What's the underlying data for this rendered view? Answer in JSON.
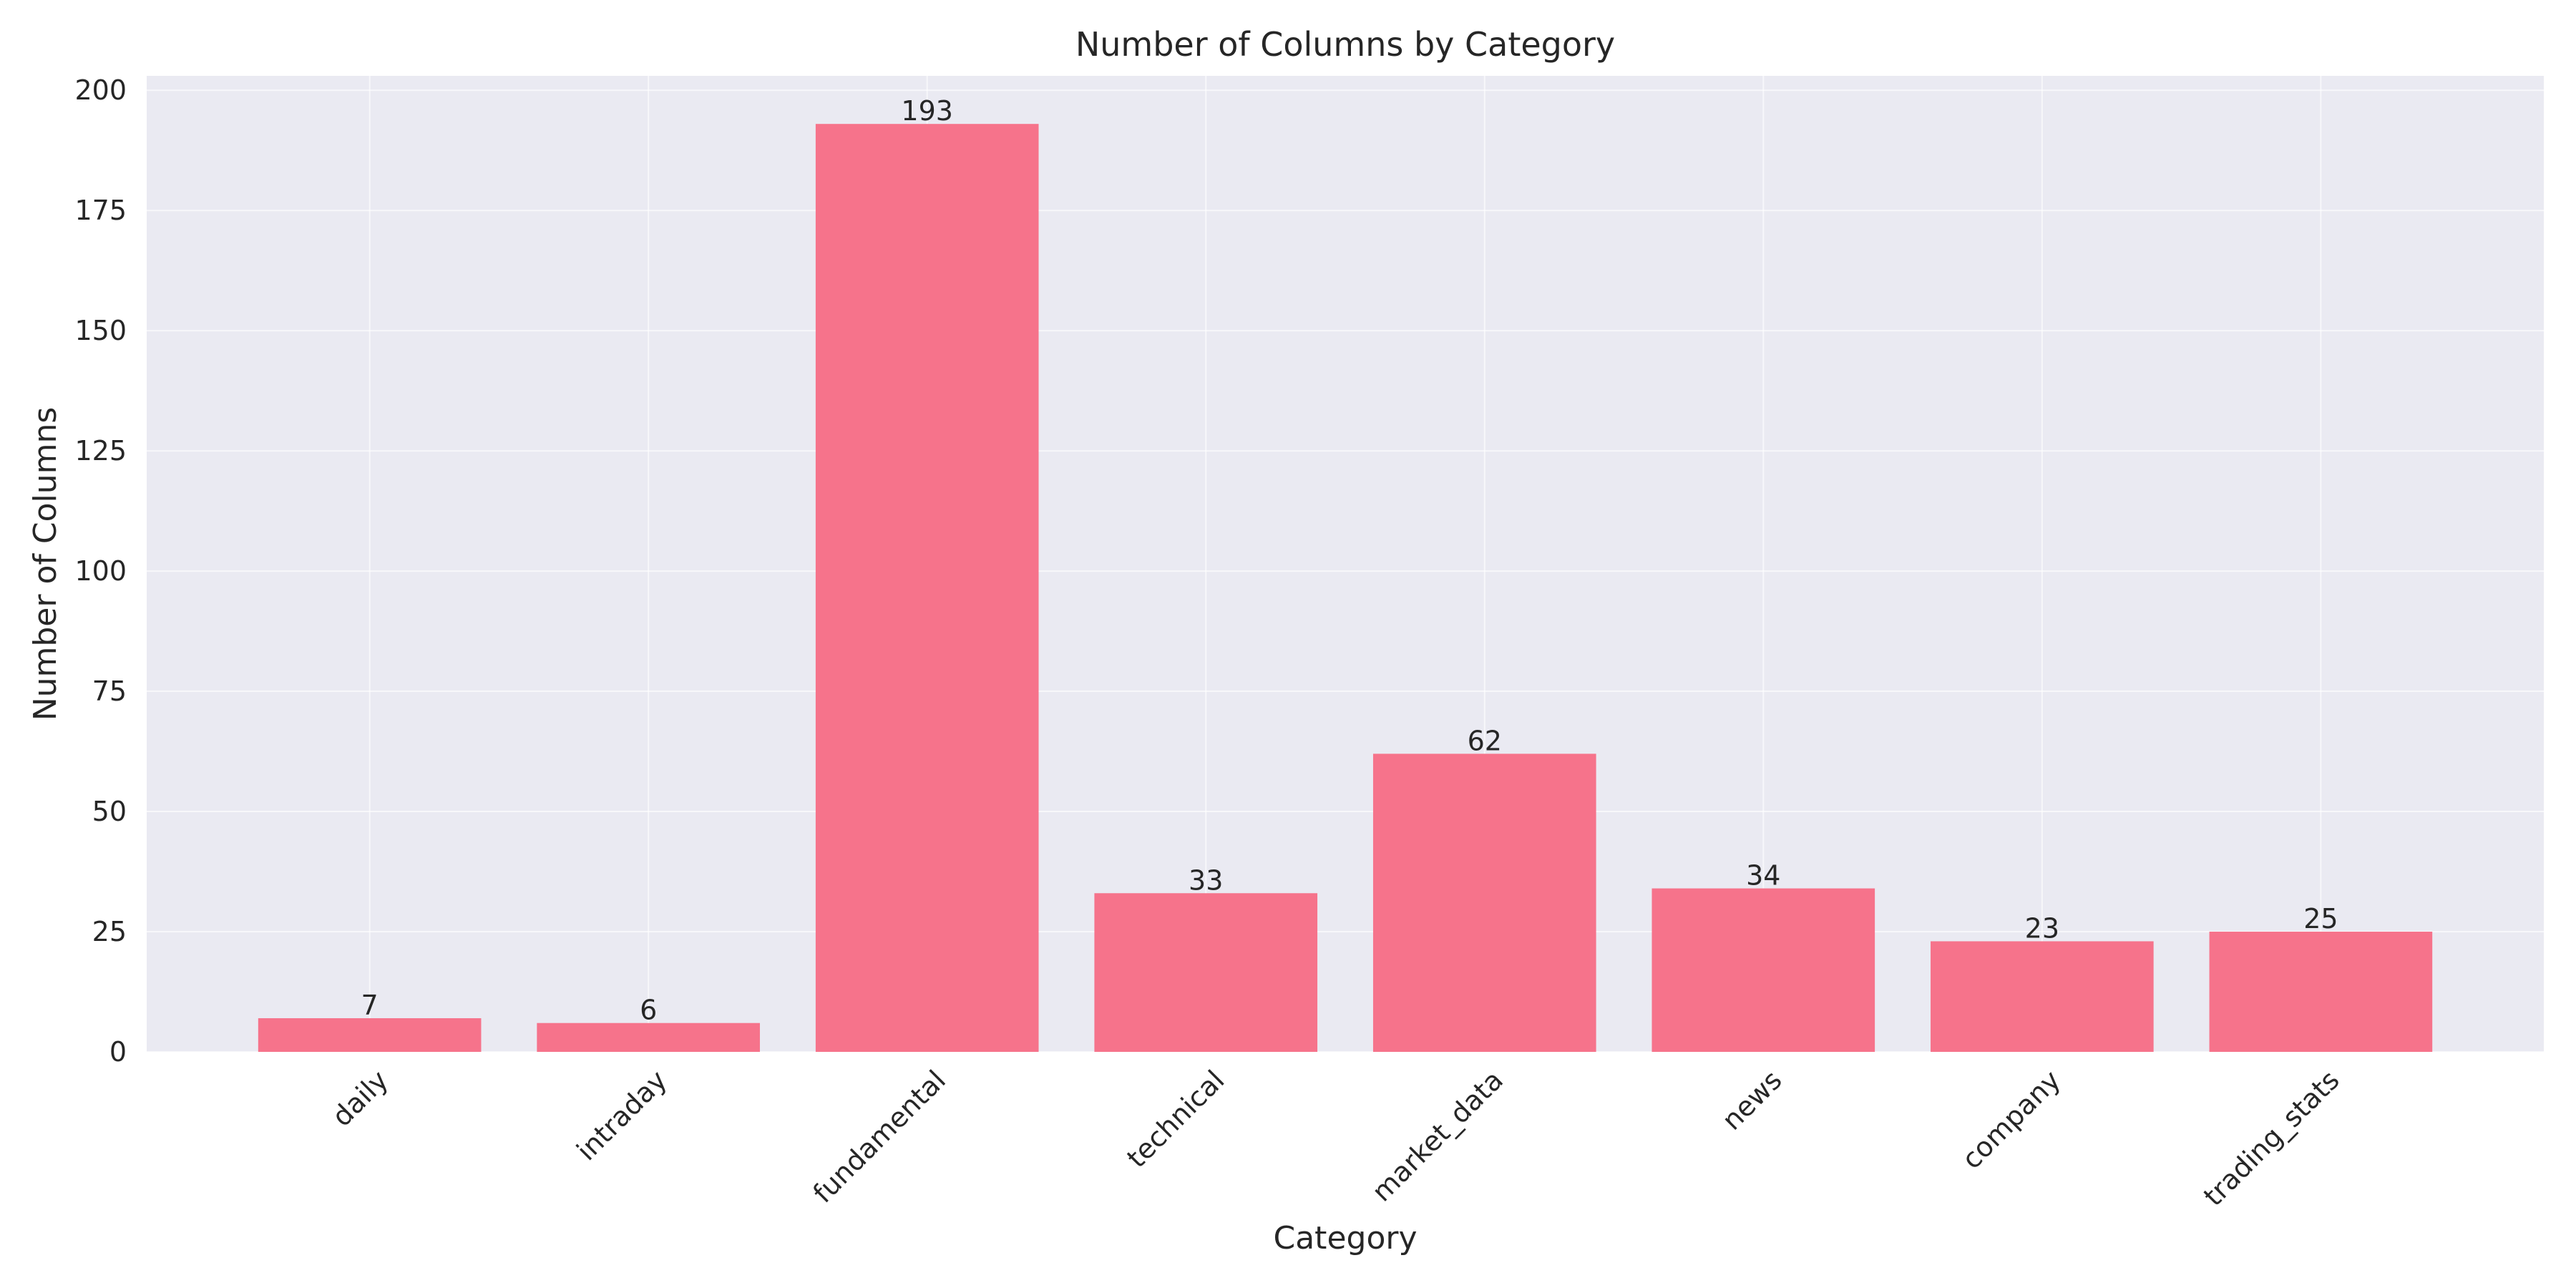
{
  "chart_data": {
    "type": "bar",
    "title": "Number of Columns by Category",
    "xlabel": "Category",
    "ylabel": "Number of Columns",
    "categories": [
      "daily",
      "intraday",
      "fundamental",
      "technical",
      "market_data",
      "news",
      "company",
      "trading_stats"
    ],
    "values": [
      7,
      6,
      193,
      33,
      62,
      34,
      23,
      25
    ],
    "value_labels": [
      "7",
      "6",
      "193",
      "33",
      "62",
      "34",
      "23",
      "25"
    ],
    "ylim": [
      0,
      203
    ],
    "yticks": [
      0,
      25,
      50,
      75,
      100,
      125,
      150,
      175,
      200
    ],
    "ytick_labels": [
      "0",
      "25",
      "50",
      "75",
      "100",
      "125",
      "150",
      "175",
      "200"
    ],
    "grid": true,
    "legend": "none",
    "colors": {
      "bar": "#f6738b",
      "plot_background": "#eaeaf2",
      "grid": "#ffffff",
      "text": "#262626"
    }
  }
}
